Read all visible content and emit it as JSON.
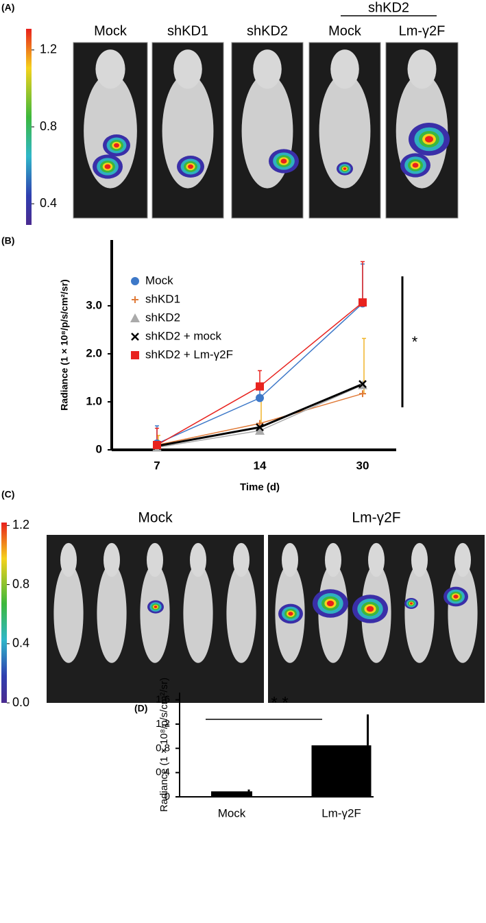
{
  "panel_labels": [
    "(A)",
    "(B)",
    "(C)",
    "(D)"
  ],
  "panel_a": {
    "colorbar": {
      "clim": [
        0.29,
        1.31
      ],
      "ticks": [
        1.2,
        0.8,
        0.4
      ]
    },
    "group_label": "shKD2",
    "labels": [
      "Mock",
      "shKD1",
      "shKD2",
      "Mock",
      "Lm-γ2F"
    ]
  },
  "panel_c": {
    "colorbar": {
      "clim": [
        0,
        1.22
      ],
      "ticks": [
        {
          "value": 0,
          "label": "0.0"
        },
        0.4,
        0.8,
        1.2
      ]
    },
    "labels": [
      "Mock",
      "Lm-γ2F"
    ]
  },
  "chart_data": [
    {
      "type": "line",
      "y_label": "Radiance (1 × 10⁸/p/s/cm²/sr)",
      "x_label": "Time (d)",
      "categories": [
        "7",
        "14",
        "30"
      ],
      "ylim": [
        0,
        4.37
      ],
      "yticks": [
        0,
        {
          "value": 1,
          "label": "1.0"
        },
        {
          "value": 2,
          "label": "2.0"
        },
        {
          "value": 3,
          "label": "3.0"
        }
      ],
      "annotation": "*",
      "series": [
        {
          "name": "Mock",
          "color": "#3d78c8",
          "marker": "circle",
          "values": [
            0.13,
            1.08,
            3.05
          ],
          "errors": [
            0.37,
            0.3,
            0.82
          ]
        },
        {
          "name": "shKD1",
          "color": "#e07b39",
          "marker": "plus",
          "values": [
            0.1,
            0.55,
            1.17
          ],
          "errors": [
            0.2,
            0.55,
            1.15
          ]
        },
        {
          "name": "shKD2",
          "color": "#aaaaaa",
          "marker": "triangle",
          "values": [
            0.05,
            0.4,
            1.35
          ]
        },
        {
          "name": "shKD2 + mock",
          "color": "#000000",
          "marker": "x",
          "values": [
            0.08,
            0.47,
            1.37
          ]
        },
        {
          "name": "shKD2 + Lm-γ2F",
          "color": "#e8231f",
          "marker": "square",
          "values": [
            0.1,
            1.32,
            3.07
          ],
          "errors": [
            0.35,
            0.33,
            0.85
          ]
        }
      ]
    },
    {
      "type": "bar",
      "y_label": "Radiance (1 × 10⁸/p/s/cm²/sr)",
      "categories": [
        "Mock",
        "Lm-γ2F"
      ],
      "values": [
        0.09,
        0.85
      ],
      "errors": [
        0.03,
        0.51
      ],
      "color": "#000000",
      "ylim": [
        0,
        1.72
      ],
      "yticks": [
        0,
        0.4,
        0.8,
        1.2,
        1.6
      ],
      "annotation": "* *"
    }
  ]
}
